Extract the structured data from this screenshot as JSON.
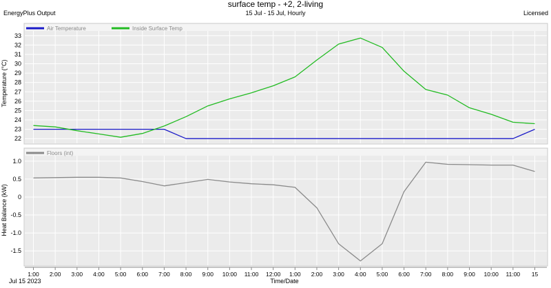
{
  "header": {
    "title": "surface temp - +2, 2-living",
    "subtitle": "15 Jul - 15 Jul, Hourly",
    "left": "EnergyPlus Output",
    "right": "Licensed"
  },
  "footer": {
    "date_label": "Jul  15 2023",
    "xlabel": "Time/Date"
  },
  "colors": {
    "air": "#1a1ac8",
    "surface": "#22bb22",
    "floors": "#8a8a8a",
    "plot_bg": "#ebebeb",
    "grid": "#ffffff"
  },
  "chart_data": [
    {
      "type": "line",
      "ylabel": "Temperature (°C)",
      "ylim": [
        21.5,
        33.5
      ],
      "yticks": [
        22,
        23,
        24,
        25,
        26,
        27,
        28,
        29,
        30,
        31,
        32,
        33
      ],
      "x": [
        "1:00",
        "2:00",
        "3:00",
        "4:00",
        "5:00",
        "6:00",
        "7:00",
        "8:00",
        "9:00",
        "10:00",
        "11:00",
        "12:00",
        "1:00",
        "2:00",
        "3:00",
        "4:00",
        "5:00",
        "6:00",
        "7:00",
        "8:00",
        "9:00",
        "10:00",
        "11:00",
        "15"
      ],
      "legend_position": "top-left",
      "series": [
        {
          "name": "Air Temperature",
          "color": "#1a1ac8",
          "values": [
            23.0,
            23.0,
            23.0,
            23.0,
            23.0,
            23.0,
            23.0,
            22.0,
            22.0,
            22.0,
            22.0,
            22.0,
            22.0,
            22.0,
            22.0,
            22.0,
            22.0,
            22.0,
            22.0,
            22.0,
            22.0,
            22.0,
            22.0,
            23.0
          ]
        },
        {
          "name": "Inside Surface Temp",
          "color": "#22bb22",
          "values": [
            23.4,
            23.25,
            22.85,
            22.5,
            22.15,
            22.55,
            23.35,
            24.35,
            25.5,
            26.25,
            26.9,
            27.65,
            28.6,
            30.4,
            32.1,
            32.75,
            31.75,
            29.2,
            27.25,
            26.65,
            25.3,
            24.6,
            23.75,
            23.6
          ]
        }
      ],
      "grid": true
    },
    {
      "type": "line",
      "ylabel": "Heat Balance (kW)",
      "ylim": [
        -1.9,
        1.15
      ],
      "yticks": [
        "1.0",
        "0.5",
        "0",
        "-0.5",
        "-1.0",
        "-1.5"
      ],
      "x": [
        "1:00",
        "2:00",
        "3:00",
        "4:00",
        "5:00",
        "6:00",
        "7:00",
        "8:00",
        "9:00",
        "10:00",
        "11:00",
        "12:00",
        "1:00",
        "2:00",
        "3:00",
        "4:00",
        "5:00",
        "6:00",
        "7:00",
        "8:00",
        "9:00",
        "10:00",
        "11:00",
        "15"
      ],
      "legend_position": "top-left",
      "series": [
        {
          "name": "Floors (int)",
          "color": "#8a8a8a",
          "values": [
            0.53,
            0.54,
            0.55,
            0.55,
            0.53,
            0.43,
            0.31,
            0.4,
            0.49,
            0.42,
            0.37,
            0.34,
            0.27,
            -0.3,
            -1.3,
            -1.78,
            -1.3,
            0.15,
            0.97,
            0.91,
            0.9,
            0.89,
            0.89,
            0.71
          ]
        }
      ],
      "grid": true
    }
  ]
}
